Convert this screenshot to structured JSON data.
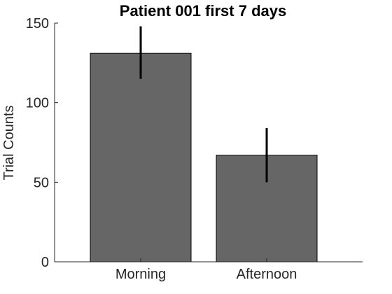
{
  "chart_data": {
    "type": "bar",
    "title": "Patient 001 first 7 days",
    "xlabel": "",
    "ylabel": "Trial Counts",
    "categories": [
      "Morning",
      "Afternoon"
    ],
    "values": [
      131,
      67
    ],
    "error_low": [
      115,
      50
    ],
    "error_high": [
      148,
      84
    ],
    "ylim": [
      0,
      150
    ],
    "yticks": [
      0,
      50,
      100,
      150
    ],
    "ytick_labels": [
      "0",
      "50",
      "100",
      "150"
    ],
    "grid": false,
    "legend": "none",
    "colors": {
      "bar_fill": "#666666",
      "bar_edge": "#000000",
      "error_bar": "#000000",
      "axis": "#262626",
      "background": "#ffffff"
    }
  }
}
